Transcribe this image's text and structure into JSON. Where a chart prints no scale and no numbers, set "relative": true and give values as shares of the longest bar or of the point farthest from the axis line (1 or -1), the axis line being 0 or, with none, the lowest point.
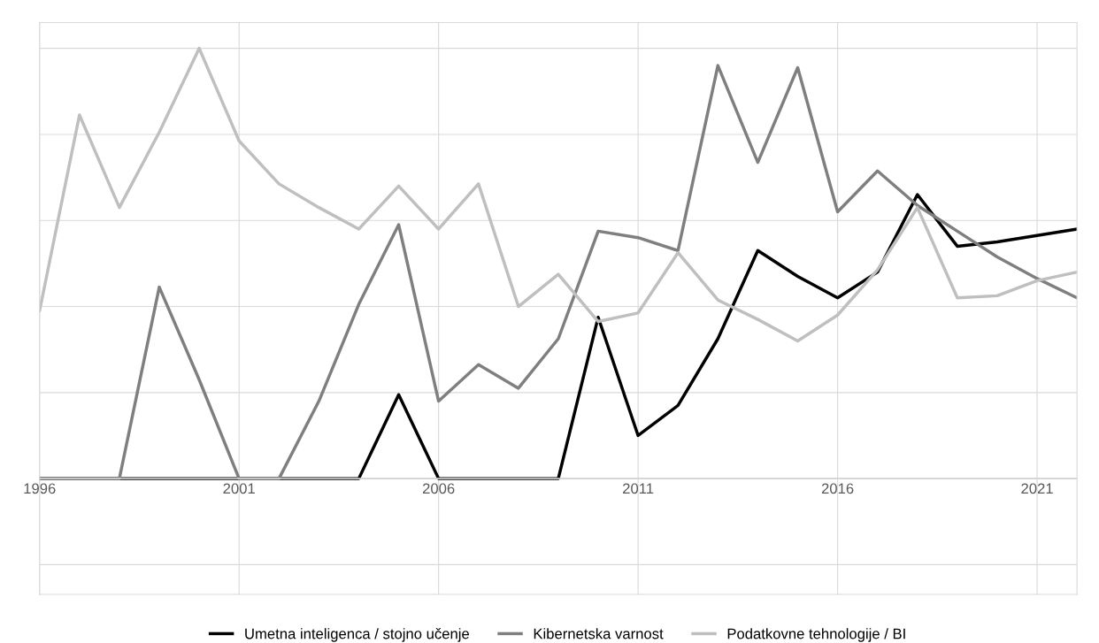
{
  "chart_data": {
    "type": "line",
    "relative": true,
    "x": [
      1996,
      1997,
      1998,
      1999,
      2000,
      2001,
      2002,
      2003,
      2004,
      2005,
      2006,
      2007,
      2008,
      2009,
      2010,
      2011,
      2012,
      2013,
      2014,
      2015,
      2016,
      2017,
      2018,
      2019,
      2020,
      2021,
      2022
    ],
    "xlim": [
      1996,
      2022
    ],
    "xticks": [
      1996,
      2001,
      2006,
      2011,
      2016,
      2021
    ],
    "tick_labels": "x",
    "grid": true,
    "legend": "bottom",
    "line_style": "solid",
    "marker": "none",
    "series": [
      {
        "name": "Umetna inteligenca / stojno učenje",
        "color": "#000000",
        "values": [
          0,
          0,
          0,
          0,
          0,
          0,
          0,
          0,
          0,
          0.195,
          0,
          0,
          0,
          0,
          0.375,
          0.1,
          0.17,
          0.325,
          0.53,
          0.47,
          0.42,
          0.48,
          0.66,
          0.54,
          0.55,
          0.565,
          0.58
        ]
      },
      {
        "name": "Kibernetska varnost",
        "color": "#7f7f7f",
        "values": [
          0,
          0,
          0,
          0.445,
          0.23,
          0,
          0,
          0.18,
          0.405,
          0.59,
          0.18,
          0.265,
          0.21,
          0.325,
          0.575,
          0.56,
          0.53,
          0.96,
          0.735,
          0.955,
          0.62,
          0.715,
          0.635,
          0.575,
          0.515,
          0.465,
          0.42
        ]
      },
      {
        "name": "Podatkovne tehnologije / BI",
        "color": "#bfbfbf",
        "values": [
          0.39,
          0.845,
          0.63,
          0.805,
          1,
          0.785,
          0.685,
          0.63,
          0.58,
          0.68,
          0.58,
          0.685,
          0.4,
          0.475,
          0.365,
          0.385,
          0.525,
          0.415,
          0.37,
          0.32,
          0.38,
          0.485,
          0.63,
          0.42,
          0.425,
          0.46,
          0.48
        ]
      }
    ]
  }
}
